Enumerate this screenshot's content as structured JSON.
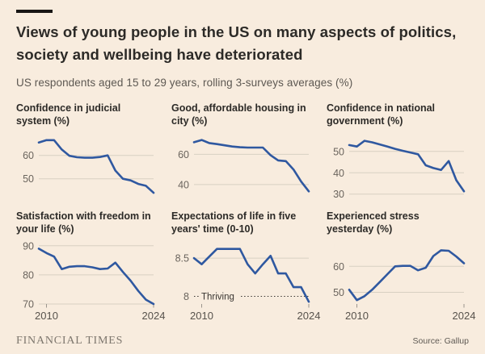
{
  "page": {
    "title": "Views of young people in the US on many aspects of politics, society and wellbeing have deteriorated",
    "subtitle": "US respondents aged 15 to 29 years, rolling 3-surveys averages (%)",
    "footer_brand": "FINANCIAL TIMES",
    "source": "Source: Gallup"
  },
  "colors": {
    "background": "#f8ecde",
    "line": "#2f58a0",
    "grid": "#d8d0c2",
    "headline_text": "#2c2a27",
    "secondary_text": "#5d5852"
  },
  "chart_data": [
    {
      "type": "line",
      "title": "Confidence in judicial system (%)",
      "x_start": 2009,
      "x_end": 2024,
      "values": [
        65.5,
        66.5,
        66.5,
        62.5,
        59.8,
        59.2,
        59,
        59,
        59.3,
        60,
        53.5,
        50,
        49.3,
        47.8,
        47,
        44
      ],
      "ylim": [
        43,
        68.5
      ],
      "yticks": [
        60,
        50
      ]
    },
    {
      "type": "line",
      "title": "Good, affordable housing in city (%)",
      "x_start": 2009,
      "x_end": 2024,
      "values": [
        68,
        69.5,
        67.5,
        66.8,
        66,
        65.2,
        64.7,
        64.5,
        64.5,
        64.5,
        59.5,
        56,
        55.5,
        50,
        42,
        35.5
      ],
      "ylim": [
        33,
        72.5
      ],
      "yticks": [
        60,
        40
      ]
    },
    {
      "type": "line",
      "title": "Confidence in national government (%)",
      "x_start": 2009,
      "x_end": 2024,
      "values": [
        53,
        52.3,
        55,
        54.3,
        53.3,
        52.3,
        51.2,
        50.3,
        49.5,
        48.7,
        43.5,
        42.2,
        41.3,
        45.5,
        36.5,
        31.3
      ],
      "ylim": [
        29.5,
        57.5
      ],
      "yticks": [
        50,
        40,
        30
      ]
    },
    {
      "type": "line",
      "title": "Satisfaction with freedom in your life (%)",
      "x_start": 2009,
      "x_end": 2024,
      "values": [
        89,
        87.5,
        86.3,
        82,
        82.8,
        83,
        83,
        82.6,
        82,
        82.2,
        84.2,
        81,
        78,
        74.5,
        71.5,
        70
      ],
      "ylim": [
        70,
        90.5
      ],
      "yticks": [
        90,
        80,
        70
      ],
      "xticks": [
        2010,
        2024
      ]
    },
    {
      "type": "line",
      "title": "Expectations of life in five years' time (0-10)",
      "x_start": 2009,
      "x_end": 2024,
      "values": [
        8.5,
        8.42,
        8.52,
        8.62,
        8.62,
        8.62,
        8.62,
        8.42,
        8.3,
        8.42,
        8.53,
        8.3,
        8.3,
        8.12,
        8.12,
        7.93
      ],
      "ylim": [
        7.9,
        8.68
      ],
      "yticks": [
        8.5
      ],
      "threshold": {
        "value": 8,
        "label": "Thriving"
      },
      "xticks": [
        2010,
        2024
      ]
    },
    {
      "type": "line",
      "title": "Experienced stress yesterday (%)",
      "x_start": 2009,
      "x_end": 2024,
      "values": [
        51,
        47,
        48.5,
        51,
        54,
        57,
        60,
        60.2,
        60.2,
        58.5,
        59.5,
        64,
        66.2,
        66,
        63.8,
        61.2
      ],
      "ylim": [
        45.5,
        68.5
      ],
      "yticks": [
        60,
        50
      ],
      "xticks": [
        2010,
        2024
      ]
    }
  ]
}
